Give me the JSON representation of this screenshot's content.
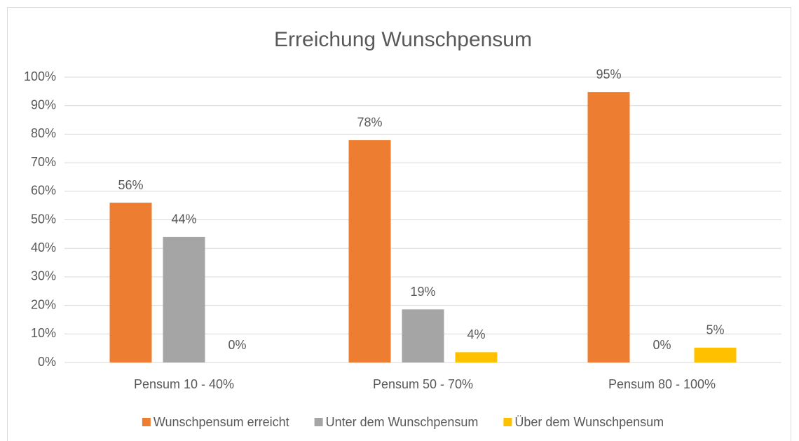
{
  "chart_data": {
    "type": "bar",
    "title": "Erreichung Wunschpensum",
    "categories": [
      "Pensum 10 - 40%",
      "Pensum 50 - 70%",
      "Pensum 80 - 100%"
    ],
    "series": [
      {
        "name": "Wunschpensum erreicht",
        "color": "#ed7d31",
        "values": [
          56,
          77.9,
          94.8
        ],
        "value_labels": [
          "56%",
          "78%",
          "95%"
        ]
      },
      {
        "name": "Unter dem Wunschpensum",
        "color": "#a5a5a5",
        "values": [
          44,
          18.6,
          0
        ],
        "value_labels": [
          "44%",
          "19%",
          "0%"
        ]
      },
      {
        "name": "Über dem Wunschpensum",
        "color": "#ffc000",
        "values": [
          0,
          3.6,
          5.2
        ],
        "value_labels": [
          "0%",
          "4%",
          "5%"
        ]
      }
    ],
    "ylim": [
      0,
      100
    ],
    "yticks": [
      {
        "value": 0,
        "label": "0%"
      },
      {
        "value": 10,
        "label": "10%"
      },
      {
        "value": 20,
        "label": "20%"
      },
      {
        "value": 30,
        "label": "30%"
      },
      {
        "value": 40,
        "label": "40%"
      },
      {
        "value": 50,
        "label": "50%"
      },
      {
        "value": 60,
        "label": "60%"
      },
      {
        "value": 70,
        "label": "70%"
      },
      {
        "value": 80,
        "label": "80%"
      },
      {
        "value": 90,
        "label": "90%"
      },
      {
        "value": 100,
        "label": "100%"
      }
    ],
    "grid": true,
    "legend": "bottom"
  }
}
